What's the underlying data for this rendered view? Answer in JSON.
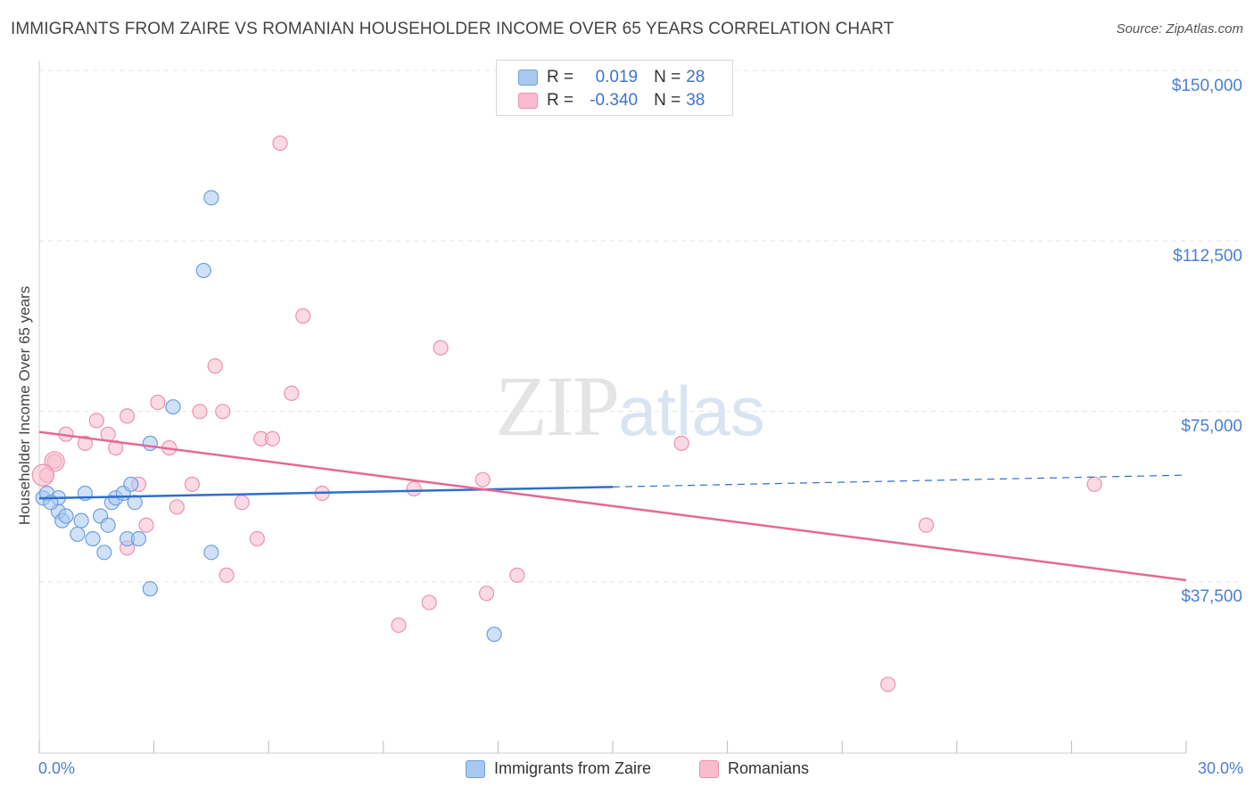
{
  "header": {
    "title": "IMMIGRANTS FROM ZAIRE VS ROMANIAN HOUSEHOLDER INCOME OVER 65 YEARS CORRELATION CHART",
    "source": "Source: ZipAtlas.com"
  },
  "watermark": {
    "zip": "ZIP",
    "atlas": "atlas"
  },
  "legend": {
    "rows": [
      {
        "r_label": "R = ",
        "r_value": "0.019",
        "n_label": "N = ",
        "n_value": "28"
      },
      {
        "r_label": "R = ",
        "r_value": "-0.340",
        "n_label": "N = ",
        "n_value": "38"
      }
    ]
  },
  "bottom_legend": {
    "series1": "Immigrants from Zaire",
    "series2": "Romanians"
  },
  "colors": {
    "series1_fill": "#a9c8f0",
    "series1_stroke": "#6e9fe0",
    "series1_line": "#2d6fcc",
    "series2_fill": "#f7bccd",
    "series2_stroke": "#ee91ae",
    "series2_line": "#e46a93",
    "tick_label": "#4a7fd4"
  },
  "chart_data": {
    "type": "scatter",
    "title": "IMMIGRANTS FROM ZAIRE VS ROMANIAN HOUSEHOLDER INCOME OVER 65 YEARS CORRELATION CHART",
    "xlabel": "",
    "ylabel": "Householder Income Over 65 years",
    "xlim": [
      0,
      30
    ],
    "ylim": [
      0,
      155000
    ],
    "x_tick_labels": [
      "0.0%",
      "30.0%"
    ],
    "y_ticks": [
      37500,
      75000,
      112500,
      150000
    ],
    "y_tick_labels": [
      "$37,500",
      "$75,000",
      "$112,500",
      "$150,000"
    ],
    "grid": true,
    "legend_position": "top-center",
    "series": [
      {
        "name": "Immigrants from Zaire",
        "r": 0.019,
        "n": 28,
        "points": [
          [
            0.1,
            56000
          ],
          [
            0.2,
            57000
          ],
          [
            0.5,
            53000
          ],
          [
            0.5,
            56000
          ],
          [
            0.6,
            51000
          ],
          [
            0.7,
            52000
          ],
          [
            1.0,
            48000
          ],
          [
            1.1,
            51000
          ],
          [
            1.2,
            57000
          ],
          [
            1.4,
            47000
          ],
          [
            1.6,
            52000
          ],
          [
            1.7,
            44000
          ],
          [
            1.8,
            50000
          ],
          [
            1.9,
            55000
          ],
          [
            2.0,
            56000
          ],
          [
            2.2,
            57000
          ],
          [
            2.3,
            47000
          ],
          [
            2.4,
            59000
          ],
          [
            2.5,
            55000
          ],
          [
            2.6,
            47000
          ],
          [
            2.9,
            36000
          ],
          [
            2.9,
            68000
          ],
          [
            3.5,
            76000
          ],
          [
            4.3,
            106000
          ],
          [
            4.5,
            122000
          ],
          [
            4.5,
            44000
          ],
          [
            11.9,
            26000
          ],
          [
            0.3,
            55000
          ]
        ],
        "trend": {
          "x": [
            0,
            15,
            30
          ],
          "y": [
            55900,
            58400,
            61000
          ],
          "solid_until": 15
        }
      },
      {
        "name": "Romanians",
        "r": -0.34,
        "n": 38,
        "points": [
          [
            0.2,
            61000
          ],
          [
            0.4,
            64000
          ],
          [
            0.7,
            70000
          ],
          [
            1.2,
            68000
          ],
          [
            1.5,
            73000
          ],
          [
            1.8,
            70000
          ],
          [
            2.0,
            67000
          ],
          [
            2.3,
            74000
          ],
          [
            2.6,
            59000
          ],
          [
            2.8,
            50000
          ],
          [
            3.1,
            77000
          ],
          [
            3.4,
            67000
          ],
          [
            3.6,
            54000
          ],
          [
            4.0,
            59000
          ],
          [
            4.2,
            75000
          ],
          [
            4.6,
            85000
          ],
          [
            4.8,
            75000
          ],
          [
            4.9,
            39000
          ],
          [
            5.3,
            55000
          ],
          [
            5.7,
            47000
          ],
          [
            5.8,
            69000
          ],
          [
            6.1,
            69000
          ],
          [
            6.3,
            134000
          ],
          [
            6.6,
            79000
          ],
          [
            6.9,
            96000
          ],
          [
            7.4,
            57000
          ],
          [
            9.4,
            28000
          ],
          [
            9.8,
            58000
          ],
          [
            10.2,
            33000
          ],
          [
            10.5,
            89000
          ],
          [
            11.6,
            60000
          ],
          [
            11.7,
            35000
          ],
          [
            12.5,
            39000
          ],
          [
            16.8,
            68000
          ],
          [
            22.2,
            15000
          ],
          [
            23.2,
            50000
          ],
          [
            27.6,
            59000
          ],
          [
            2.3,
            45000
          ]
        ],
        "trend": {
          "x": [
            0,
            30
          ],
          "y": [
            70500,
            37900
          ]
        }
      }
    ]
  }
}
